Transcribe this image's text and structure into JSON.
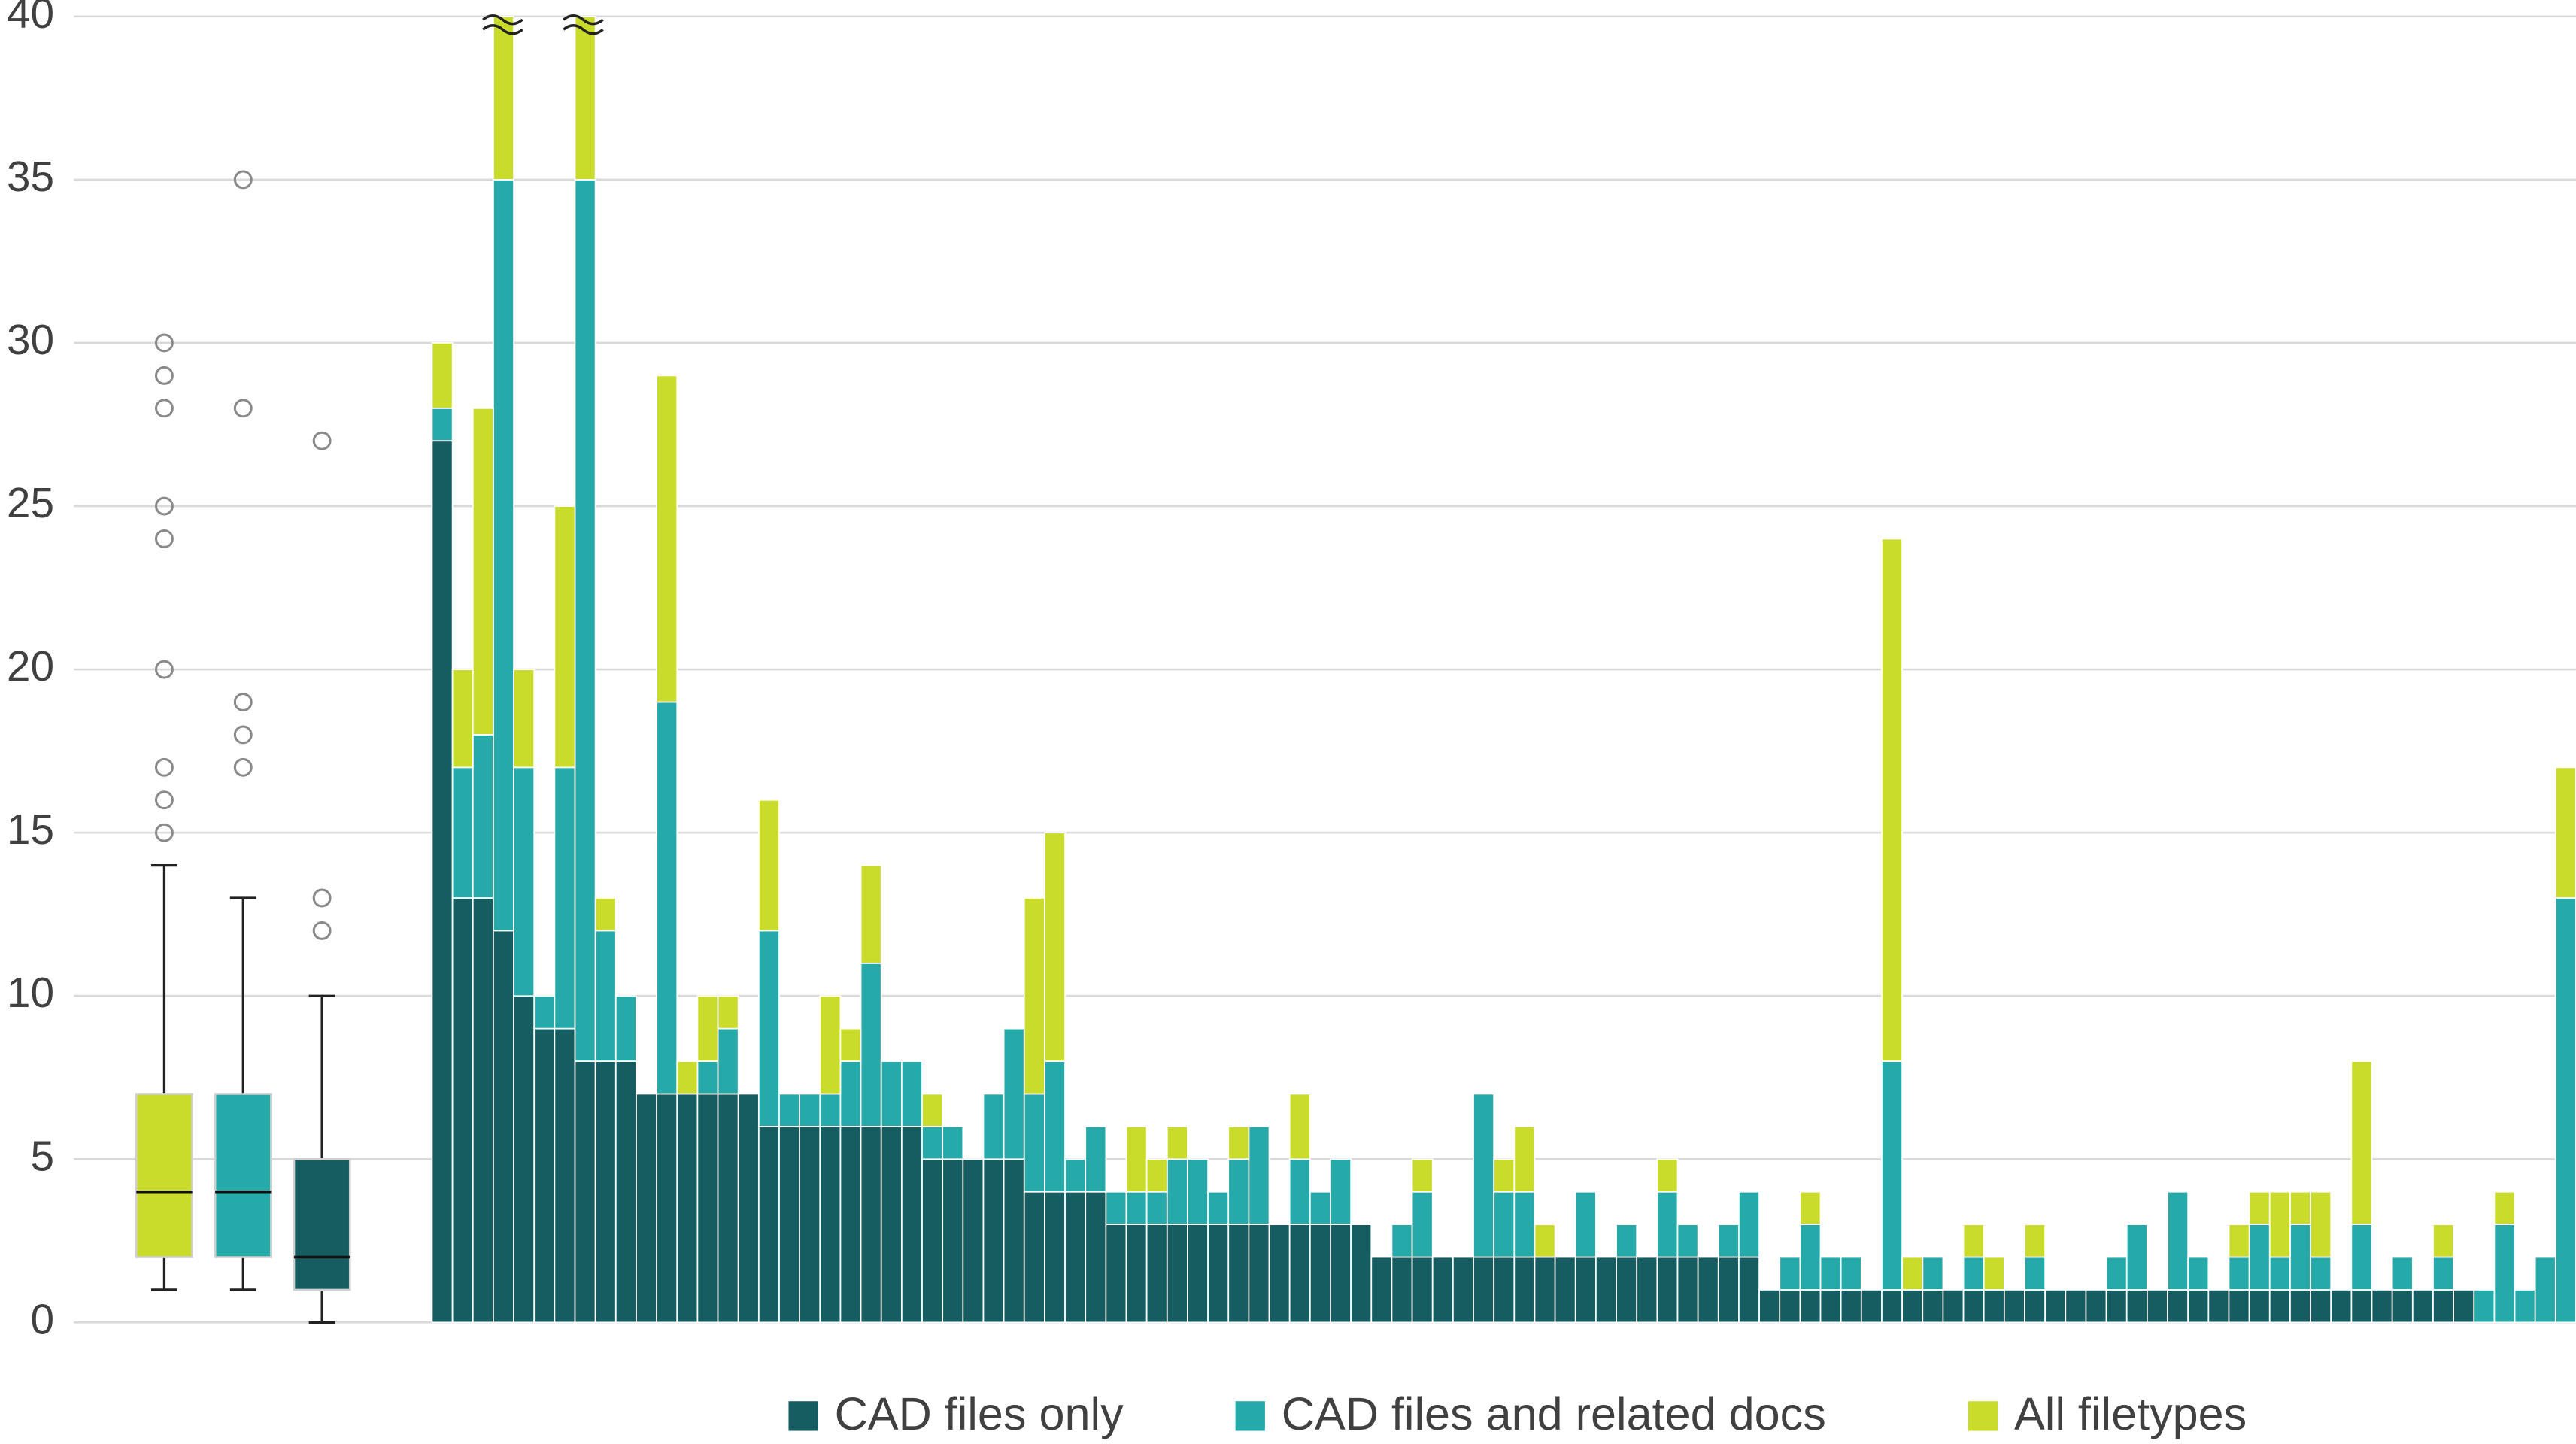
{
  "chart_data": [
    {
      "type": "box",
      "ylim": [
        0,
        40
      ],
      "yticks": [
        0,
        5,
        10,
        15,
        20,
        25,
        30,
        35,
        40
      ],
      "grid": true,
      "boxes": [
        {
          "color": "#c9dc2b",
          "min": 1,
          "q1": 2,
          "median": 4,
          "q3": 7,
          "max": 14,
          "outliers": [
            15,
            16,
            17,
            20,
            24,
            25,
            28,
            29,
            30
          ]
        },
        {
          "color": "#26a9a9",
          "min": 1,
          "q1": 2,
          "median": 4,
          "q3": 7,
          "max": 13,
          "outliers": [
            17,
            18,
            19,
            28,
            35
          ]
        },
        {
          "color": "#155d61",
          "min": 0,
          "q1": 1,
          "median": 2,
          "q3": 5,
          "max": 10,
          "outliers": [
            12,
            13,
            27
          ]
        }
      ]
    },
    {
      "type": "bar",
      "stacked": true,
      "ylim": [
        0,
        40
      ],
      "legend": "bottom",
      "series": [
        {
          "name": "CAD files only",
          "color": "#155d61",
          "values": [
            27,
            13,
            13,
            12,
            10,
            9,
            9,
            8,
            8,
            8,
            7,
            7,
            7,
            7,
            7,
            7,
            6,
            6,
            6,
            6,
            6,
            6,
            6,
            6,
            5,
            5,
            5,
            5,
            5,
            4,
            4,
            4,
            4,
            3,
            3,
            3,
            3,
            3,
            3,
            3,
            3,
            3,
            3,
            3,
            3,
            3,
            2,
            2,
            2,
            2,
            2,
            2,
            2,
            2,
            2,
            2,
            2,
            2,
            2,
            2,
            2,
            2,
            2,
            2,
            2,
            1,
            1,
            1,
            1,
            1,
            1,
            1,
            1,
            1,
            1,
            1,
            1,
            1,
            1,
            1,
            1,
            1,
            1,
            1,
            1,
            1,
            1,
            1,
            1,
            1,
            1,
            1,
            1,
            1,
            1,
            1,
            1,
            1,
            1,
            1,
            0,
            0,
            0,
            0,
            0
          ]
        },
        {
          "name": "CAD files and related docs",
          "color": "#26a9a9",
          "values": [
            1,
            4,
            5,
            23,
            7,
            1,
            8,
            27,
            4,
            2,
            0,
            12,
            0,
            1,
            2,
            0,
            6,
            1,
            1,
            1,
            2,
            5,
            2,
            2,
            1,
            1,
            0,
            2,
            4,
            3,
            4,
            1,
            2,
            1,
            1,
            1,
            2,
            2,
            1,
            2,
            3,
            0,
            2,
            1,
            2,
            0,
            0,
            1,
            2,
            0,
            0,
            5,
            2,
            2,
            0,
            0,
            2,
            0,
            1,
            0,
            2,
            1,
            0,
            1,
            2,
            0,
            1,
            2,
            1,
            1,
            0,
            7,
            0,
            1,
            0,
            1,
            0,
            0,
            1,
            0,
            0,
            0,
            1,
            2,
            0,
            3,
            1,
            0,
            1,
            2,
            1,
            2,
            1,
            0,
            2,
            0,
            1,
            0,
            1,
            0,
            1,
            3,
            1,
            2,
            13
          ]
        },
        {
          "name": "All filetypes",
          "color": "#c9dc2b",
          "values": [
            2,
            3,
            10,
            5,
            3,
            0,
            8,
            5,
            1,
            0,
            0,
            10,
            1,
            2,
            1,
            0,
            4,
            0,
            0,
            3,
            1,
            3,
            0,
            0,
            1,
            0,
            0,
            0,
            0,
            6,
            7,
            0,
            0,
            0,
            2,
            1,
            1,
            0,
            0,
            1,
            0,
            0,
            2,
            0,
            0,
            0,
            0,
            0,
            1,
            0,
            0,
            0,
            1,
            2,
            1,
            0,
            0,
            0,
            0,
            0,
            1,
            0,
            0,
            0,
            0,
            0,
            0,
            1,
            0,
            0,
            0,
            16,
            1,
            0,
            0,
            1,
            1,
            0,
            1,
            0,
            0,
            0,
            0,
            0,
            0,
            0,
            0,
            0,
            1,
            1,
            2,
            1,
            2,
            0,
            5,
            0,
            0,
            0,
            1,
            0,
            0,
            1,
            0,
            0,
            4
          ]
        }
      ]
    }
  ]
}
